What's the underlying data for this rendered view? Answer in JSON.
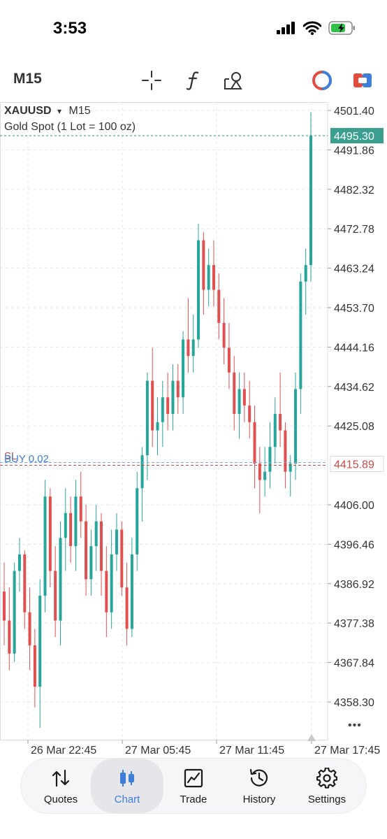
{
  "status": {
    "time": "3:53"
  },
  "toolbar": {
    "timeframe": "M15"
  },
  "chart_info": {
    "symbol": "XAUUSD",
    "timeframe_marker": "▾",
    "timeframe": "M15",
    "description": "Gold Spot (1 Lot = 100 oz)",
    "position_label": "BUY 0.02",
    "sl_label": "SL",
    "more": "•••"
  },
  "chart_data": {
    "type": "candlestick",
    "symbol": "XAUUSD",
    "timeframe": "M15",
    "y_ticks": [
      "4501.40",
      "4491.86",
      "4482.32",
      "4472.78",
      "4463.24",
      "4453.70",
      "4444.16",
      "4434.62",
      "4425.08",
      "4406.00",
      "4396.46",
      "4386.92",
      "4377.38",
      "4367.84",
      "4358.30"
    ],
    "ylim": [
      4350.0,
      4508.0
    ],
    "x_ticks": [
      "26 Mar 22:45",
      "27 Mar 05:45",
      "27 Mar 11:45",
      "27 Mar 17:45"
    ],
    "current_price": "4495.30",
    "position_price": "4415.89",
    "current_price_value": 4495.3,
    "position_price_value": 4415.89,
    "colors": {
      "up": "#26a69a",
      "down": "#e05050",
      "current": "#3a9f8f",
      "position": "#c94848",
      "grid": "#e6e6e6"
    },
    "candles": [
      [
        4385,
        4392,
        4372,
        4378
      ],
      [
        4378,
        4386,
        4366,
        4370
      ],
      [
        4370,
        4392,
        4368,
        4390
      ],
      [
        4390,
        4398,
        4385,
        4394
      ],
      [
        4394,
        4395,
        4376,
        4380
      ],
      [
        4380,
        4386,
        4366,
        4372
      ],
      [
        4372,
        4376,
        4357,
        4362
      ],
      [
        4362,
        4388,
        4352,
        4384
      ],
      [
        4384,
        4412,
        4380,
        4408
      ],
      [
        4408,
        4410,
        4386,
        4390
      ],
      [
        4390,
        4396,
        4374,
        4378
      ],
      [
        4378,
        4402,
        4372,
        4398
      ],
      [
        4398,
        4410,
        4390,
        4404
      ],
      [
        4404,
        4408,
        4392,
        4396
      ],
      [
        4396,
        4412,
        4390,
        4408
      ],
      [
        4408,
        4414,
        4398,
        4402
      ],
      [
        4402,
        4406,
        4384,
        4388
      ],
      [
        4388,
        4400,
        4384,
        4396
      ],
      [
        4396,
        4406,
        4390,
        4402
      ],
      [
        4402,
        4404,
        4384,
        4390
      ],
      [
        4390,
        4396,
        4374,
        4380
      ],
      [
        4380,
        4400,
        4376,
        4394
      ],
      [
        4394,
        4404,
        4390,
        4400
      ],
      [
        4400,
        4402,
        4384,
        4386
      ],
      [
        4386,
        4392,
        4372,
        4376
      ],
      [
        4376,
        4398,
        4374,
        4394
      ],
      [
        4394,
        4414,
        4390,
        4410
      ],
      [
        4410,
        4420,
        4402,
        4418
      ],
      [
        4418,
        4438,
        4412,
        4436
      ],
      [
        4436,
        4444,
        4420,
        4424
      ],
      [
        4424,
        4432,
        4418,
        4426
      ],
      [
        4426,
        4436,
        4420,
        4432
      ],
      [
        4432,
        4438,
        4424,
        4428
      ],
      [
        4428,
        4440,
        4424,
        4436
      ],
      [
        4436,
        4440,
        4428,
        4432
      ],
      [
        4432,
        4448,
        4428,
        4446
      ],
      [
        4446,
        4456,
        4438,
        4442
      ],
      [
        4442,
        4452,
        4438,
        4446
      ],
      [
        4446,
        4474,
        4444,
        4470
      ],
      [
        4470,
        4472,
        4452,
        4458
      ],
      [
        4458,
        4468,
        4454,
        4464
      ],
      [
        4464,
        4470,
        4454,
        4458
      ],
      [
        4458,
        4462,
        4446,
        4450
      ],
      [
        4450,
        4456,
        4440,
        4444
      ],
      [
        4444,
        4450,
        4434,
        4438
      ],
      [
        4438,
        4442,
        4424,
        4428
      ],
      [
        4428,
        4438,
        4422,
        4434
      ],
      [
        4434,
        4438,
        4426,
        4430
      ],
      [
        4430,
        4436,
        4422,
        4426
      ],
      [
        4426,
        4430,
        4410,
        4416
      ],
      [
        4416,
        4420,
        4404,
        4412
      ],
      [
        4412,
        4420,
        4408,
        4414
      ],
      [
        4414,
        4426,
        4410,
        4420
      ],
      [
        4420,
        4432,
        4416,
        4428
      ],
      [
        4428,
        4438,
        4420,
        4424
      ],
      [
        4424,
        4426,
        4410,
        4414
      ],
      [
        4414,
        4418,
        4408,
        4416
      ],
      [
        4416,
        4438,
        4412,
        4434
      ],
      [
        4434,
        4462,
        4428,
        4460
      ],
      [
        4460,
        4468,
        4452,
        4464
      ],
      [
        4464,
        4501,
        4460,
        4495.3
      ]
    ]
  },
  "tabs": [
    {
      "label": "Quotes",
      "icon": "arrows-up-down-icon"
    },
    {
      "label": "Chart",
      "icon": "candles-icon"
    },
    {
      "label": "Trade",
      "icon": "trend-chart-icon"
    },
    {
      "label": "History",
      "icon": "clock-history-icon"
    },
    {
      "label": "Settings",
      "icon": "gear-icon"
    }
  ]
}
